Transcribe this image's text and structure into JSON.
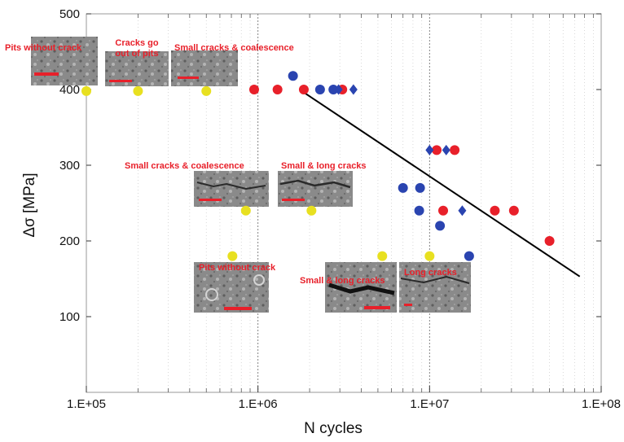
{
  "chart_data": {
    "type": "scatter",
    "xlabel": "N cycles",
    "ylabel": "Δσ [MPa]",
    "x_scale": "log",
    "xlim": [
      100000,
      100000000
    ],
    "ylim": [
      0,
      500
    ],
    "x_ticks": [
      {
        "value": 100000,
        "label": "1.E+05"
      },
      {
        "value": 1000000,
        "label": "1.E+06"
      },
      {
        "value": 10000000,
        "label": "1.E+07"
      },
      {
        "value": 100000000,
        "label": "1.E+08"
      }
    ],
    "y_ticks": [
      {
        "value": 100,
        "label": "100"
      },
      {
        "value": 200,
        "label": "200"
      },
      {
        "value": 300,
        "label": "300"
      },
      {
        "value": 400,
        "label": "400"
      },
      {
        "value": 500,
        "label": "500"
      }
    ],
    "grid": "vertical log grid",
    "series": [
      {
        "marker": "circle",
        "color": "#e8202a",
        "points": [
          [
            950000,
            400
          ],
          [
            1300000,
            400
          ],
          [
            1850000,
            400
          ],
          [
            3100000,
            400
          ],
          [
            11000000,
            320
          ],
          [
            14000000,
            320
          ],
          [
            12000000,
            240
          ],
          [
            24000000,
            240
          ],
          [
            31000000,
            240
          ],
          [
            50000000,
            200
          ]
        ]
      },
      {
        "marker": "circle",
        "color": "#2a44b0",
        "points": [
          [
            1600000,
            418
          ],
          [
            2300000,
            400
          ],
          [
            2750000,
            400
          ],
          [
            7000000,
            270
          ],
          [
            8800000,
            270
          ],
          [
            8700000,
            240
          ],
          [
            11500000,
            220
          ],
          [
            17000000,
            180
          ]
        ]
      },
      {
        "marker": "diamond",
        "color": "#2a44b0",
        "points": [
          [
            2950000,
            400
          ],
          [
            3600000,
            400
          ],
          [
            10000000,
            320
          ],
          [
            12500000,
            320
          ],
          [
            15500000,
            240
          ]
        ]
      },
      {
        "marker": "circle",
        "color": "#e8e020",
        "points": [
          [
            100000,
            398
          ],
          [
            200000,
            398
          ],
          [
            500000,
            398
          ],
          [
            850000,
            240
          ],
          [
            2050000,
            240
          ],
          [
            710000,
            180
          ],
          [
            5300000,
            180
          ],
          [
            10000000,
            180
          ]
        ]
      }
    ],
    "fit_line": {
      "color": "#000000",
      "points": [
        [
          1800000,
          398
        ],
        [
          75000000,
          153
        ]
      ]
    },
    "annotations": [
      "Pits without crack",
      "Cracks go",
      "out of pits",
      "Small cracks & coalescence",
      "Small cracks & coalescence",
      "Small & long cracks",
      "Pits without crack",
      "Small & long cracks",
      "Long cracks"
    ]
  }
}
